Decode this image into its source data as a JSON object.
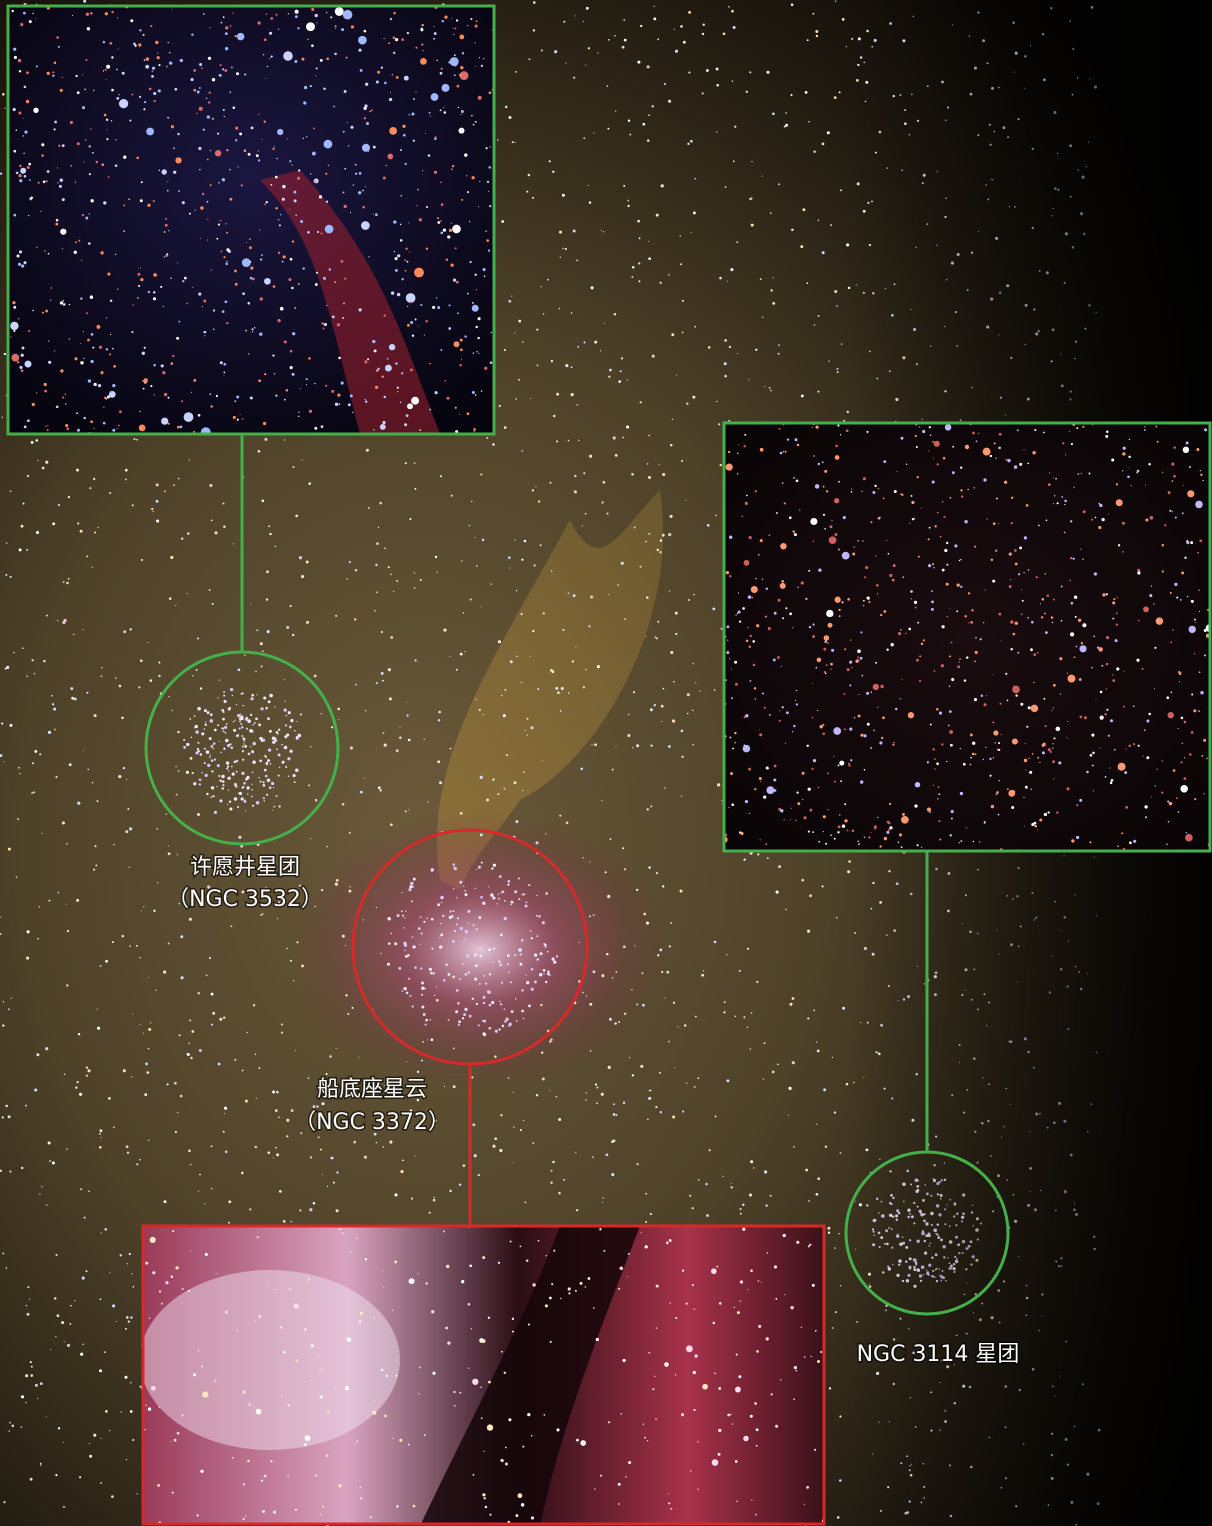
{
  "labels": [
    {
      "name": "许愿井星团",
      "designation": "（NGC 3532）"
    },
    {
      "name": "船底座星云",
      "designation": "（NGC 3372）"
    },
    {
      "name": "NGC 3114 星团"
    }
  ]
}
